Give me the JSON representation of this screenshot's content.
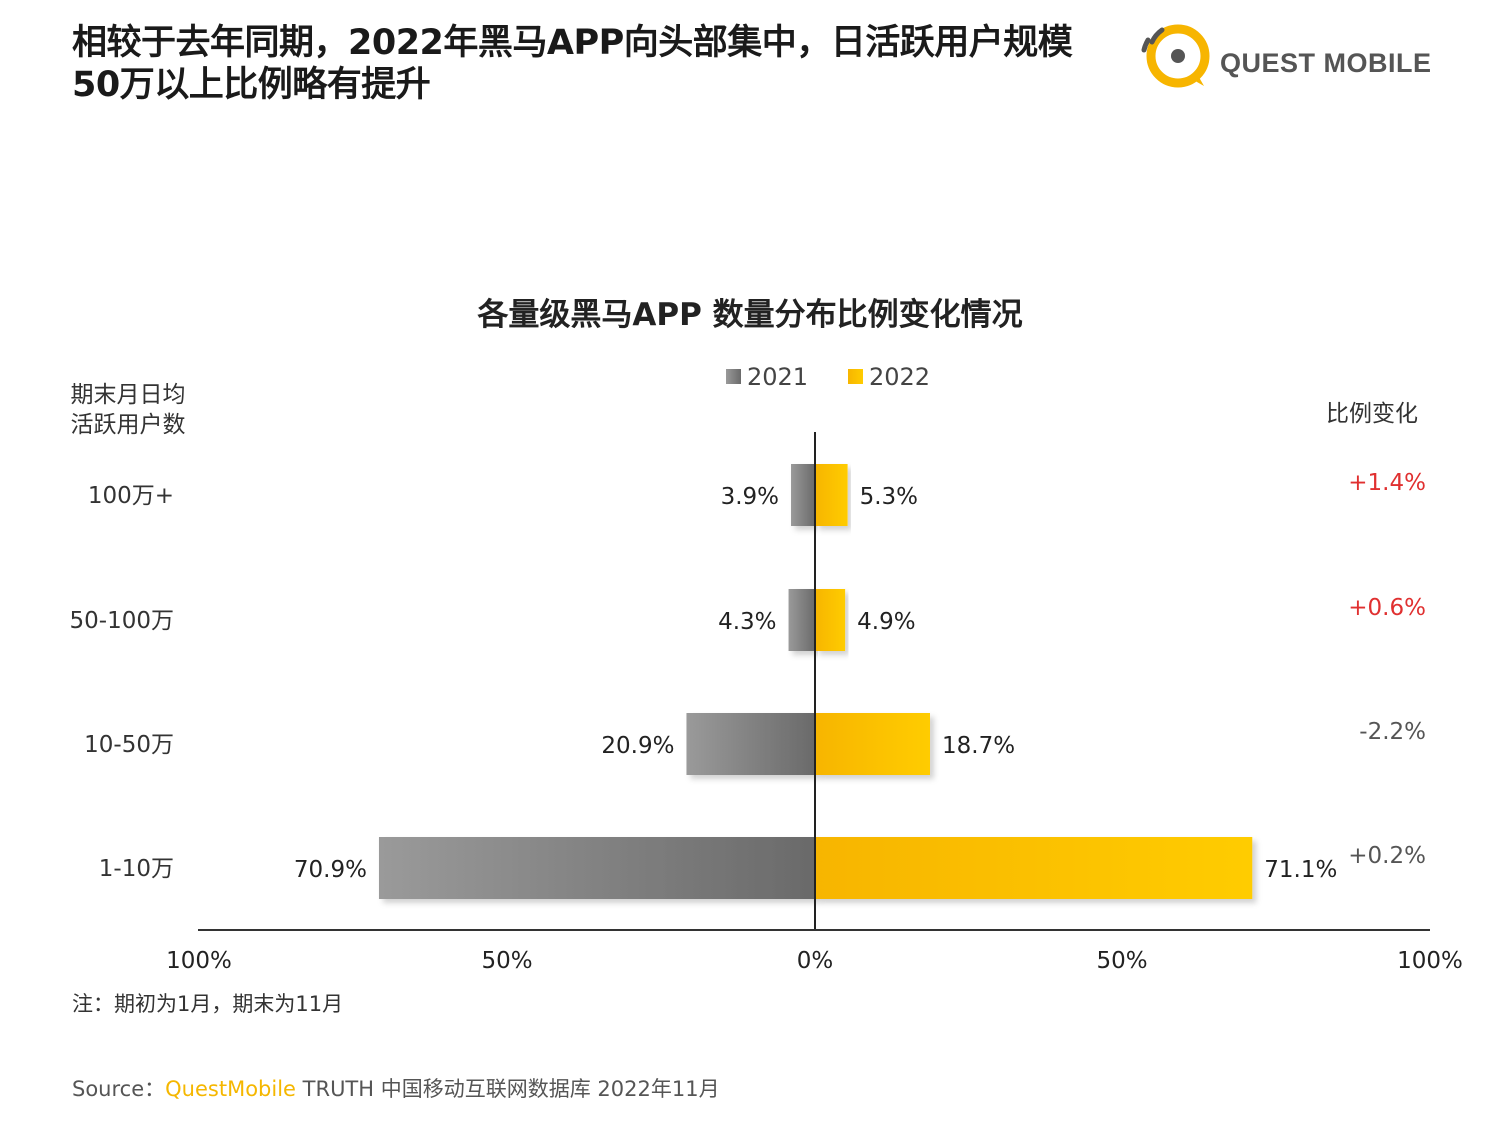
{
  "header": {
    "headline_line1": "相较于去年同期，2022年黑马APP向头部集中，日活跃用户规模",
    "headline_line2": "50万以上比例略有提升",
    "logo_text": "QUEST MOBILE"
  },
  "chart_data": {
    "type": "bar",
    "orientation": "horizontal-diverging",
    "title": "各量级黑马APP 数量分布比例变化情况",
    "y_axis_title_line1": "期末月日均",
    "y_axis_title_line2": "活跃用户数",
    "change_column_title": "比例变化",
    "categories": [
      "100万+",
      "50-100万",
      "10-50万",
      "1-10万"
    ],
    "series": [
      {
        "name": "2021",
        "color": "#7a7a7a",
        "values": [
          3.9,
          4.3,
          20.9,
          70.9
        ],
        "labels": [
          "3.9%",
          "4.3%",
          "20.9%",
          "70.9%"
        ]
      },
      {
        "name": "2022",
        "color": "#f7b500",
        "values": [
          5.3,
          4.9,
          18.7,
          71.1
        ],
        "labels": [
          "5.3%",
          "4.9%",
          "18.7%",
          "71.1%"
        ]
      }
    ],
    "changes": [
      "+1.4%",
      "+0.6%",
      "-2.2%",
      "+0.2%"
    ],
    "change_colors": [
      "#e03030",
      "#e03030",
      "#555555",
      "#555555"
    ],
    "x_ticks": [
      "100%",
      "50%",
      "0%",
      "50%",
      "100%"
    ],
    "xlim": [
      -100,
      100
    ],
    "legend_position": "top-center",
    "grid": false
  },
  "footnote": "注：期初为1月，期末为11月",
  "source": {
    "prefix": "Source：",
    "brand": "QuestMobile",
    "suffix": " TRUTH 中国移动互联网数据库 2022年11月"
  }
}
